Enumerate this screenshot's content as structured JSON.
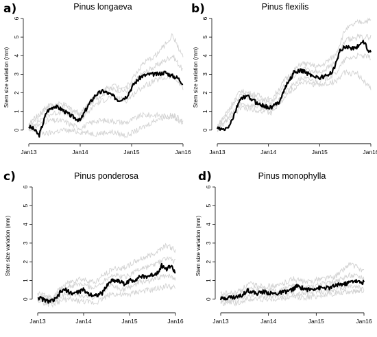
{
  "chart_data": [
    {
      "type": "line",
      "panel": "a)",
      "title": "Pinus longaeva",
      "ylabel": "Stem size variation (mm)",
      "xlabel": "",
      "x_ticks": [
        "Jan13",
        "Jan14",
        "Jan15",
        "Jan16"
      ],
      "y_ticks": [
        0,
        1,
        2,
        3,
        4,
        5,
        6
      ],
      "ylim": [
        -0.3,
        6
      ],
      "grid": false,
      "series": [
        {
          "role": "mean",
          "color": "#000000",
          "x": [
            0,
            0.1,
            0.2,
            0.35,
            0.5,
            0.65,
            0.8,
            1.0,
            1.15,
            1.3,
            1.45,
            1.6,
            1.75,
            1.9,
            2.05,
            2.2,
            2.35,
            2.5,
            2.65,
            2.8,
            2.9,
            3.0
          ],
          "y": [
            0.2,
            0.05,
            -0.3,
            1.0,
            1.3,
            1.1,
            0.8,
            0.5,
            1.3,
            1.9,
            2.1,
            1.9,
            1.6,
            1.8,
            2.5,
            2.9,
            3.0,
            3.0,
            3.1,
            2.9,
            2.8,
            2.5
          ]
        },
        {
          "role": "individual",
          "color": "#d2d2d2",
          "x": [
            0,
            0.35,
            0.65,
            1.0,
            1.3,
            1.6,
            1.9,
            2.2,
            2.5,
            2.8,
            3.0
          ],
          "y": [
            0.3,
            1.3,
            1.4,
            0.9,
            1.9,
            2.4,
            2.3,
            3.5,
            4.1,
            5.1,
            3.9
          ]
        },
        {
          "role": "individual",
          "color": "#d2d2d2",
          "x": [
            0,
            0.35,
            0.65,
            1.0,
            1.3,
            1.6,
            1.9,
            2.2,
            2.5,
            2.8,
            3.0
          ],
          "y": [
            0.2,
            1.2,
            1.3,
            0.8,
            1.7,
            2.2,
            2.1,
            3.0,
            3.5,
            4.0,
            3.2
          ]
        },
        {
          "role": "individual",
          "color": "#d2d2d2",
          "x": [
            0,
            0.35,
            0.65,
            1.0,
            1.3,
            1.6,
            1.9,
            2.2,
            2.5,
            2.8,
            3.0
          ],
          "y": [
            0.1,
            0.8,
            1.0,
            0.5,
            1.4,
            1.8,
            1.6,
            2.3,
            2.7,
            2.9,
            2.3
          ]
        },
        {
          "role": "individual",
          "color": "#d2d2d2",
          "x": [
            0,
            0.35,
            0.65,
            1.0,
            1.3,
            1.6,
            1.9,
            2.2,
            2.5,
            2.8,
            3.0
          ],
          "y": [
            0.0,
            0.5,
            0.5,
            0.1,
            0.5,
            0.5,
            0.4,
            0.8,
            0.8,
            0.7,
            0.4
          ]
        },
        {
          "role": "individual",
          "color": "#d2d2d2",
          "x": [
            0,
            0.35,
            0.65,
            1.0,
            1.3,
            1.6,
            1.9,
            2.2,
            2.5,
            2.8,
            3.0
          ],
          "y": [
            0.0,
            -0.2,
            0.0,
            -0.1,
            -0.2,
            -0.1,
            -0.3,
            0.1,
            0.6,
            0.8,
            0.5
          ]
        }
      ]
    },
    {
      "type": "line",
      "panel": "b)",
      "title": "Pinus flexilis",
      "ylabel": "Stem size variation (mm)",
      "xlabel": "",
      "x_ticks": [
        "Jan13",
        "Jan14",
        "Jan15",
        "Jan16"
      ],
      "y_ticks": [
        0,
        1,
        2,
        3,
        4,
        5,
        6
      ],
      "ylim": [
        -0.3,
        6
      ],
      "grid": false,
      "series": [
        {
          "role": "mean",
          "color": "#000000",
          "x": [
            0,
            0.1,
            0.2,
            0.3,
            0.45,
            0.6,
            0.75,
            0.9,
            1.05,
            1.2,
            1.35,
            1.5,
            1.65,
            1.8,
            2.0,
            2.2,
            2.3,
            2.4,
            2.5,
            2.65,
            2.75,
            2.85,
            2.95,
            3.0
          ],
          "y": [
            0.1,
            0.0,
            0.1,
            0.6,
            1.7,
            1.8,
            1.5,
            1.3,
            1.2,
            1.5,
            2.4,
            3.1,
            3.2,
            3.0,
            2.8,
            3.0,
            3.4,
            4.3,
            4.5,
            4.4,
            4.5,
            4.8,
            4.3,
            4.2
          ]
        },
        {
          "role": "individual",
          "color": "#d2d2d2",
          "x": [
            0,
            0.45,
            0.75,
            1.05,
            1.35,
            1.65,
            2.0,
            2.3,
            2.5,
            2.75,
            3.0
          ],
          "y": [
            0.2,
            2.1,
            1.9,
            1.6,
            2.8,
            3.6,
            3.4,
            4.0,
            5.4,
            5.8,
            5.9
          ]
        },
        {
          "role": "individual",
          "color": "#d2d2d2",
          "x": [
            0,
            0.45,
            0.75,
            1.05,
            1.35,
            1.65,
            2.0,
            2.3,
            2.5,
            2.75,
            3.0
          ],
          "y": [
            0.1,
            1.9,
            1.7,
            1.4,
            2.6,
            3.3,
            3.1,
            3.6,
            4.8,
            5.0,
            5.0
          ]
        },
        {
          "role": "individual",
          "color": "#d2d2d2",
          "x": [
            0,
            0.45,
            0.75,
            1.05,
            1.35,
            1.65,
            2.0,
            2.3,
            2.5,
            2.75,
            3.0
          ],
          "y": [
            0.0,
            1.4,
            1.3,
            1.0,
            2.1,
            2.8,
            2.6,
            3.0,
            3.8,
            4.0,
            3.9
          ]
        },
        {
          "role": "individual",
          "color": "#d2d2d2",
          "x": [
            0,
            0.45,
            0.75,
            1.05,
            1.35,
            1.65,
            2.0,
            2.3,
            2.5,
            2.75,
            3.0
          ],
          "y": [
            0.0,
            1.2,
            1.1,
            0.9,
            1.9,
            2.6,
            2.4,
            2.6,
            3.1,
            3.0,
            2.2
          ]
        }
      ]
    },
    {
      "type": "line",
      "panel": "c)",
      "title": "Pinus ponderosa",
      "ylabel": "Stem size variation (mm)",
      "xlabel": "",
      "x_ticks": [
        "Jan13",
        "Jan14",
        "Jan15",
        "Jan16"
      ],
      "y_ticks": [
        0,
        1,
        2,
        3,
        4,
        5,
        6
      ],
      "ylim": [
        -0.3,
        6
      ],
      "grid": false,
      "series": [
        {
          "role": "mean",
          "color": "#000000",
          "x": [
            0,
            0.1,
            0.2,
            0.3,
            0.4,
            0.5,
            0.6,
            0.75,
            0.9,
            1.0,
            1.1,
            1.25,
            1.4,
            1.5,
            1.6,
            1.75,
            1.9,
            2.0,
            2.1,
            2.2,
            2.35,
            2.5,
            2.6,
            2.7,
            2.8,
            2.9,
            3.0
          ],
          "y": [
            0.1,
            0.0,
            -0.1,
            -0.1,
            0.0,
            0.4,
            0.5,
            0.3,
            0.4,
            0.5,
            0.3,
            0.2,
            0.3,
            0.7,
            1.0,
            1.0,
            0.8,
            1.0,
            1.0,
            1.2,
            1.2,
            1.3,
            1.4,
            1.8,
            1.6,
            1.8,
            1.4
          ]
        },
        {
          "role": "individual",
          "color": "#d2d2d2",
          "x": [
            0,
            0.3,
            0.6,
            0.9,
            1.25,
            1.6,
            1.9,
            2.2,
            2.5,
            2.8,
            3.0
          ],
          "y": [
            0.3,
            0.1,
            0.8,
            1.1,
            0.9,
            1.6,
            1.7,
            2.1,
            2.4,
            2.9,
            2.6
          ]
        },
        {
          "role": "individual",
          "color": "#d2d2d2",
          "x": [
            0,
            0.3,
            0.6,
            0.9,
            1.25,
            1.6,
            1.9,
            2.2,
            2.5,
            2.8,
            3.0
          ],
          "y": [
            0.2,
            0.0,
            0.6,
            0.8,
            0.6,
            1.3,
            1.2,
            1.6,
            1.8,
            2.2,
            2.0
          ]
        },
        {
          "role": "individual",
          "color": "#d2d2d2",
          "x": [
            0,
            0.3,
            0.6,
            0.9,
            1.25,
            1.6,
            1.9,
            2.2,
            2.5,
            2.8,
            3.0
          ],
          "y": [
            0.0,
            -0.2,
            0.3,
            0.2,
            0.1,
            0.7,
            0.5,
            0.9,
            1.0,
            1.3,
            1.1
          ]
        },
        {
          "role": "individual",
          "color": "#d2d2d2",
          "x": [
            0,
            0.3,
            0.6,
            0.9,
            1.25,
            1.6,
            1.9,
            2.2,
            2.5,
            2.8,
            3.0
          ],
          "y": [
            -0.1,
            -0.3,
            0.0,
            -0.1,
            -0.2,
            0.3,
            0.2,
            0.4,
            0.5,
            0.7,
            0.6
          ]
        }
      ]
    },
    {
      "type": "line",
      "panel": "d)",
      "title": "Pinus monophylla",
      "ylabel": "Stem size variation (mm)",
      "xlabel": "",
      "x_ticks": [
        "Jan13",
        "Jan14",
        "Jan15",
        "Jan16"
      ],
      "y_ticks": [
        0,
        1,
        2,
        3,
        4,
        5,
        6
      ],
      "ylim": [
        -0.3,
        6
      ],
      "grid": false,
      "series": [
        {
          "role": "mean",
          "color": "#000000",
          "x": [
            0,
            0.15,
            0.3,
            0.45,
            0.55,
            0.65,
            0.75,
            0.9,
            1.05,
            1.2,
            1.35,
            1.5,
            1.6,
            1.7,
            1.85,
            2.0,
            2.15,
            2.3,
            2.45,
            2.6,
            2.7,
            2.8,
            2.9,
            3.0
          ],
          "y": [
            0.0,
            0.1,
            0.1,
            0.2,
            0.5,
            0.4,
            0.3,
            0.4,
            0.3,
            0.3,
            0.4,
            0.5,
            0.7,
            0.6,
            0.5,
            0.6,
            0.6,
            0.6,
            0.8,
            0.8,
            0.9,
            1.0,
            0.9,
            0.9
          ]
        },
        {
          "role": "individual",
          "color": "#d2d2d2",
          "x": [
            0,
            0.3,
            0.6,
            0.9,
            1.2,
            1.5,
            1.8,
            2.1,
            2.4,
            2.7,
            3.0
          ],
          "y": [
            0.3,
            0.3,
            0.8,
            0.7,
            0.7,
            1.1,
            0.9,
            1.1,
            1.2,
            1.9,
            1.5
          ]
        },
        {
          "role": "individual",
          "color": "#d2d2d2",
          "x": [
            0,
            0.3,
            0.6,
            0.9,
            1.2,
            1.5,
            1.8,
            2.1,
            2.4,
            2.7,
            3.0
          ],
          "y": [
            0.1,
            0.2,
            0.6,
            0.5,
            0.4,
            0.7,
            0.6,
            0.8,
            0.9,
            1.3,
            1.2
          ]
        },
        {
          "role": "individual",
          "color": "#d2d2d2",
          "x": [
            0,
            0.3,
            0.6,
            0.9,
            1.2,
            1.5,
            1.8,
            2.1,
            2.4,
            2.7,
            3.0
          ],
          "y": [
            -0.1,
            0.0,
            0.2,
            0.2,
            0.2,
            0.3,
            0.3,
            0.4,
            0.5,
            0.7,
            0.6
          ]
        },
        {
          "role": "individual",
          "color": "#d2d2d2",
          "x": [
            0,
            0.3,
            0.6,
            0.9,
            1.2,
            1.5,
            1.8,
            2.1,
            2.4,
            2.7,
            3.0
          ],
          "y": [
            -0.2,
            -0.2,
            0.0,
            0.0,
            0.0,
            0.1,
            0.1,
            0.2,
            0.3,
            0.4,
            0.5
          ]
        }
      ]
    }
  ]
}
